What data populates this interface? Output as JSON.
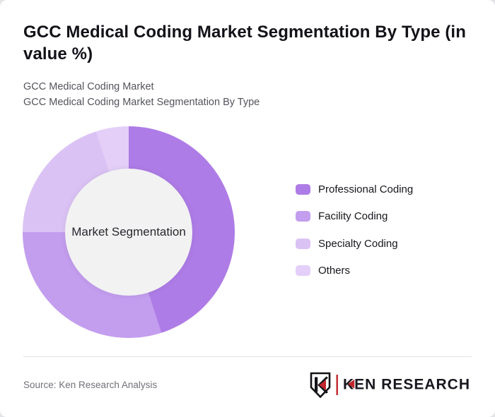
{
  "header": {
    "title": "GCC Medical Coding Market Segmentation By Type (in value %)",
    "subtitle_line_1": "GCC Medical Coding Market",
    "subtitle_line_2": "GCC Medical Coding Market Segmentation By Type"
  },
  "chart_data": {
    "type": "pie",
    "donut": true,
    "title": "GCC Medical Coding Market Segmentation By Type (in value %)",
    "center_label": "Market Segmentation",
    "categories": [
      "Professional Coding",
      "Facility Coding",
      "Specialty Coding",
      "Others"
    ],
    "values": [
      45,
      30,
      20,
      5
    ],
    "unit": "percent of value",
    "start_angle_deg": 0,
    "direction": "clockwise",
    "colors": [
      "#ae7ce6",
      "#c39dee",
      "#dbc2f4",
      "#e3cff8"
    ],
    "hole_color": "#f2f2f3",
    "legend_position": "right"
  },
  "footer": {
    "source": "Source: Ken Research Analysis",
    "logo_wordmark": "KEN RESEARCH",
    "logo_accent_color": "#c1272d",
    "logo_text_color": "#17171f"
  }
}
